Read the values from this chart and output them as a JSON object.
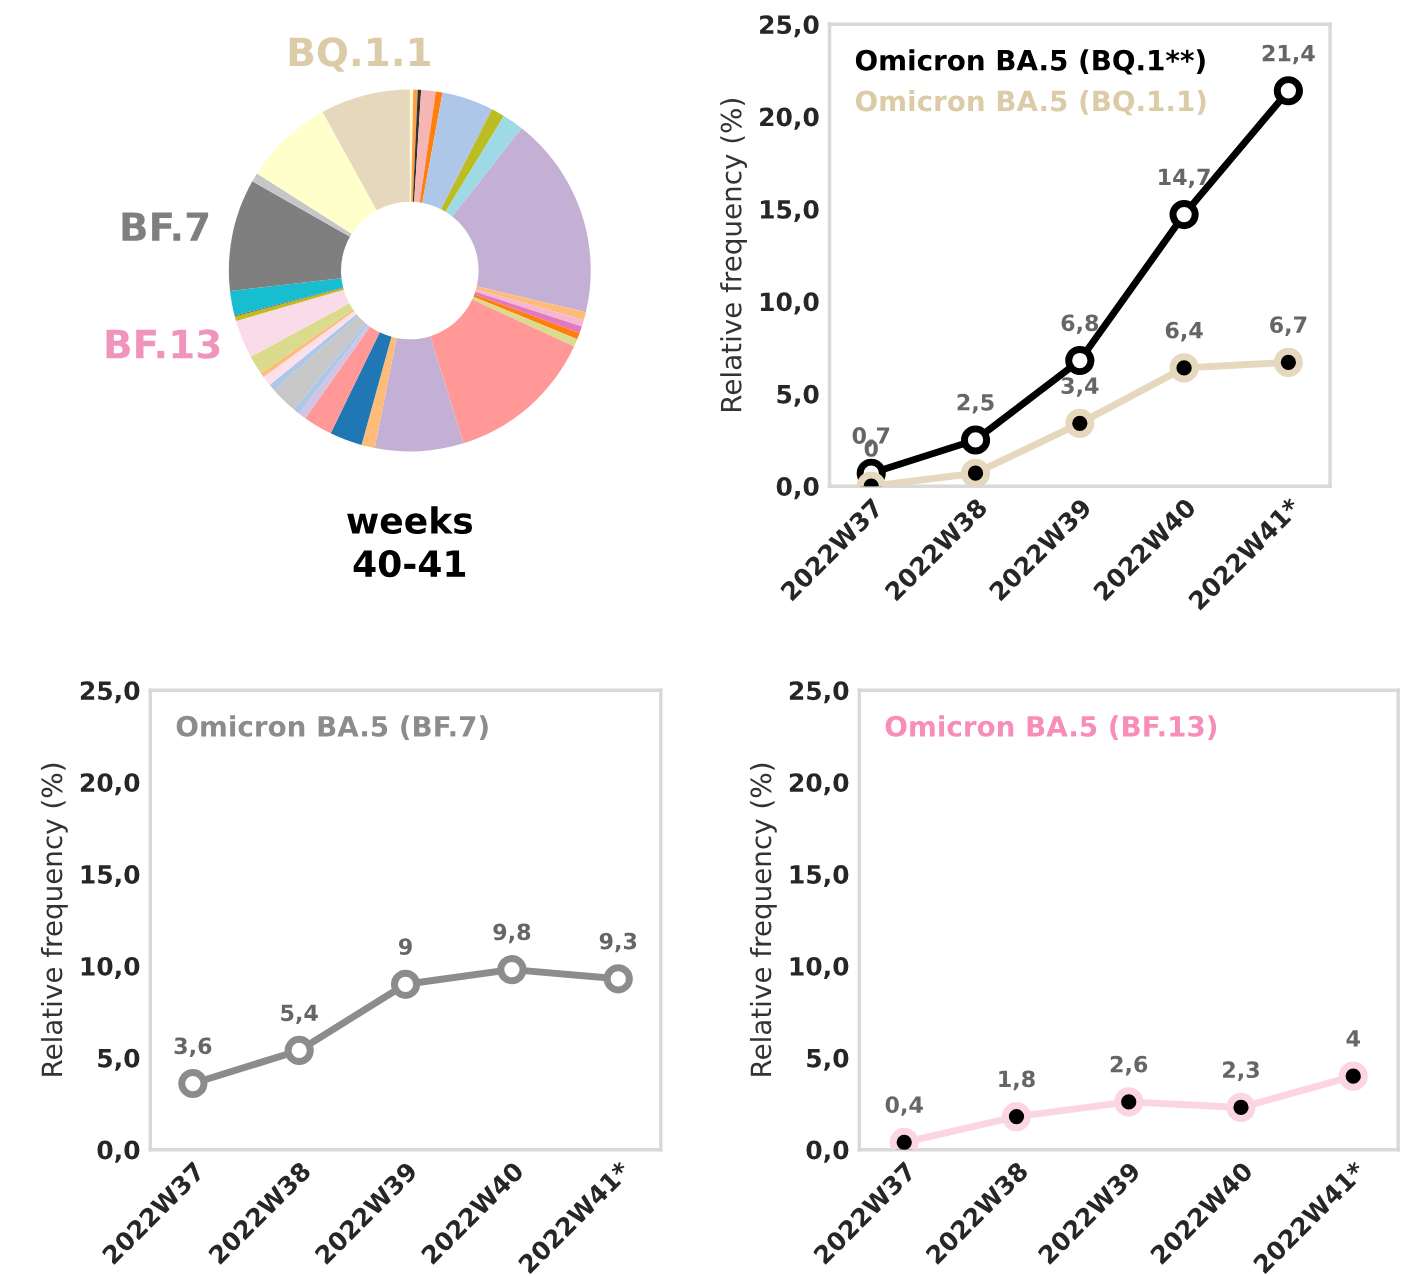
{
  "chart_data": [
    {
      "type": "donut",
      "title": "weeks\n40-41",
      "categories": [
        null,
        null,
        null,
        null,
        null,
        null,
        null,
        null,
        null,
        null,
        null,
        null,
        null,
        null,
        null,
        null,
        null,
        null,
        null,
        null,
        null,
        null,
        null,
        null,
        null,
        null,
        "BF.13",
        null,
        null,
        null,
        "BF.7",
        null,
        null,
        "BQ.1.1"
      ],
      "values": [
        0.3,
        0.4,
        0.3,
        1.3,
        0.6,
        4.6,
        1.2,
        1.9,
        18.1,
        0.7,
        0.6,
        0.6,
        0.6,
        0.7,
        13.3,
        7.9,
        1.2,
        2.9,
        2.6,
        0.7,
        0.6,
        2.4,
        0.6,
        0.9,
        0.4,
        1.7,
        3.4,
        0.4,
        0.1,
        2.2,
        10.0,
        0.8,
        8.0,
        8.0
      ],
      "colors": [
        "#ffffd0",
        "#ff9f4a",
        "#333333",
        "#f7b6b6",
        "#ff7f0e",
        "#aec7e8",
        "#bcbd22",
        "#9edae5",
        "#c5b0d5",
        "#ffbb78",
        "#f7b6d2",
        "#e377c2",
        "#ff7f0e",
        "#dbdb8d",
        "#ff9896",
        "#c5b0d5",
        "#ffbb78",
        "#1f77b4",
        "#ff9896",
        "#d4c4e4",
        "#aec7e8",
        "#c7c7c7",
        "#aec7e8",
        "#fbe0ec",
        "#ffbb78",
        "#dbdb8d",
        "#fadbe9",
        "#bcbd22",
        "#8c564b",
        "#17becf",
        "#7f7f7f",
        "#c7c7c7",
        "#ffffcc",
        "#e5d8bd"
      ]
    },
    {
      "type": "line",
      "ylabel": "Relative frequency (%)",
      "categories": [
        "2022W37",
        "2022W38",
        "2022W39",
        "2022W40",
        "2022W41*"
      ],
      "series": [
        {
          "name": "Omicron BA.5 (BQ.1**)",
          "color": "#000000",
          "values": [
            0.7,
            2.5,
            6.8,
            14.7,
            21.4
          ],
          "value_labels": [
            "0,7",
            "2,5",
            "6,8",
            "14,7",
            "21,4"
          ]
        },
        {
          "name": "Omicron BA.5 (BQ.1.1)",
          "color": "#e5d8bd",
          "values": [
            0,
            0.7,
            3.4,
            6.4,
            6.7
          ],
          "value_labels": [
            "0",
            null,
            "3,4",
            "6,4",
            "6,7"
          ]
        }
      ],
      "ylim": [
        0,
        25
      ],
      "yticks": [
        {
          "value": 0,
          "label": "0,0"
        },
        {
          "value": 5,
          "label": "5,0"
        },
        {
          "value": 10,
          "label": "10,0"
        },
        {
          "value": 15,
          "label": "15,0"
        },
        {
          "value": 20,
          "label": "20,0"
        },
        {
          "value": 25,
          "label": "25,0"
        }
      ],
      "marker": "circle",
      "legend": "top left"
    },
    {
      "type": "line",
      "ylabel": "Relative frequency (%)",
      "categories": [
        "2022W37",
        "2022W38",
        "2022W39",
        "2022W40",
        "2022W41*"
      ],
      "series": [
        {
          "name": "Omicron BA.5 (BF.7)",
          "color": "#8c8c8c",
          "values": [
            3.6,
            5.4,
            9,
            9.8,
            9.3
          ],
          "value_labels": [
            "3,6",
            "5,4",
            "9",
            "9,8",
            "9,3"
          ]
        }
      ],
      "ylim": [
        0,
        25
      ],
      "yticks": [
        {
          "value": 0,
          "label": "0,0"
        },
        {
          "value": 5,
          "label": "5,0"
        },
        {
          "value": 10,
          "label": "10,0"
        },
        {
          "value": 15,
          "label": "15,0"
        },
        {
          "value": 20,
          "label": "20,0"
        },
        {
          "value": 25,
          "label": "25,0"
        }
      ],
      "marker": "circle",
      "legend": "top left"
    },
    {
      "type": "line",
      "ylabel": "Relative frequency (%)",
      "categories": [
        "2022W37",
        "2022W38",
        "2022W39",
        "2022W40",
        "2022W41*"
      ],
      "series": [
        {
          "name": "Omicron BA.5 (BF.13)",
          "color": "#fcd5e5",
          "values": [
            0.4,
            1.8,
            2.6,
            2.3,
            4
          ],
          "value_labels": [
            "0,4",
            "1,8",
            "2,6",
            "2,3",
            "4"
          ]
        }
      ],
      "ylim": [
        0,
        25
      ],
      "yticks": [
        {
          "value": 0,
          "label": "0,0"
        },
        {
          "value": 5,
          "label": "5,0"
        },
        {
          "value": 10,
          "label": "10,0"
        },
        {
          "value": 15,
          "label": "15,0"
        },
        {
          "value": 20,
          "label": "20,0"
        },
        {
          "value": 25,
          "label": "25,0"
        }
      ],
      "marker": "circle",
      "legend": "top left"
    }
  ]
}
